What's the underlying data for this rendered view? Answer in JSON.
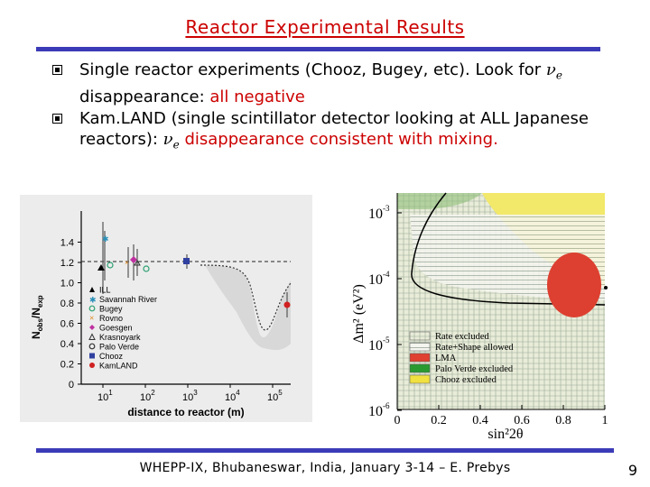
{
  "slide": {
    "title": "Reactor Experimental Results",
    "bullets": [
      {
        "pre": "Single reactor experiments (Chooz, Bugey, etc). Look for ",
        "nu_symbol": "ν",
        "nu_sub": "e",
        "mid": " disappearance: ",
        "highlight": "all negative"
      },
      {
        "pre": "Kam.LAND (single scintillator detector looking at ALL Japanese reactors): ",
        "nu_symbol": "ν",
        "nu_sub": "e",
        "highlight": " disappearance consistent with mixing."
      }
    ],
    "footer": "WHEPP-IX, Bhubaneswar, India, January 3-14 – E. Prebys",
    "page_number": "9"
  },
  "left_chart": {
    "ylabel": "Nobs/Nexp",
    "ylabel_main": "N",
    "ylabel_sub1": "obs",
    "ylabel_sep": "/N",
    "ylabel_sub2": "exp",
    "xlabel": "distance to reactor (m)",
    "ytick_labels": [
      "0",
      "0.2",
      "0.4",
      "0.6",
      "0.8",
      "1.0",
      "1.2",
      "1.4"
    ],
    "xtick_labels": [
      {
        "base": "10",
        "exp": "1"
      },
      {
        "base": "10",
        "exp": "2"
      },
      {
        "base": "10",
        "exp": "3"
      },
      {
        "base": "10",
        "exp": "4"
      },
      {
        "base": "10",
        "exp": "5"
      }
    ],
    "legend": [
      {
        "label": "ILL",
        "marker": "triangle",
        "color": "#000000"
      },
      {
        "label": "Savannah River",
        "marker": "star",
        "color": "#2a8fb8"
      },
      {
        "label": "Bugey",
        "marker": "circle-open",
        "color": "#2aa070"
      },
      {
        "label": "Rovno",
        "marker": "x",
        "color": "#e08a20"
      },
      {
        "label": "Goesgen",
        "marker": "diamond",
        "color": "#c030a0"
      },
      {
        "label": "Krasnoyark",
        "marker": "triangle-open",
        "color": "#333333"
      },
      {
        "label": "Palo Verde",
        "marker": "circle-open",
        "color": "#333333"
      },
      {
        "label": "Chooz",
        "marker": "square",
        "color": "#3040a0"
      },
      {
        "label": "KamLAND",
        "marker": "circle",
        "color": "#d02020"
      }
    ]
  },
  "right_chart": {
    "ylabel": "Δm² (eV²)",
    "xlabel": "sin²2θ",
    "ytick_labels": [
      {
        "base": "10",
        "exp": "-3"
      },
      {
        "base": "10",
        "exp": "-4"
      },
      {
        "base": "10",
        "exp": "-5"
      },
      {
        "base": "10",
        "exp": "-6"
      }
    ],
    "xtick_labels": [
      "0",
      "0.2",
      "0.4",
      "0.6",
      "0.8",
      "1"
    ],
    "legend": [
      {
        "label": "Rate excluded",
        "color": "#d8d8c8",
        "pattern": "hatched"
      },
      {
        "label": "Rate+Shape allowed",
        "color": "#ffffff",
        "pattern": "hatched"
      },
      {
        "label": "LMA",
        "color": "#e04030",
        "pattern": "solid"
      },
      {
        "label": "Palo Verde excluded",
        "color": "#2a9a30",
        "pattern": "solid"
      },
      {
        "label": "Chooz excluded",
        "color": "#f0e040",
        "pattern": "solid"
      }
    ]
  }
}
